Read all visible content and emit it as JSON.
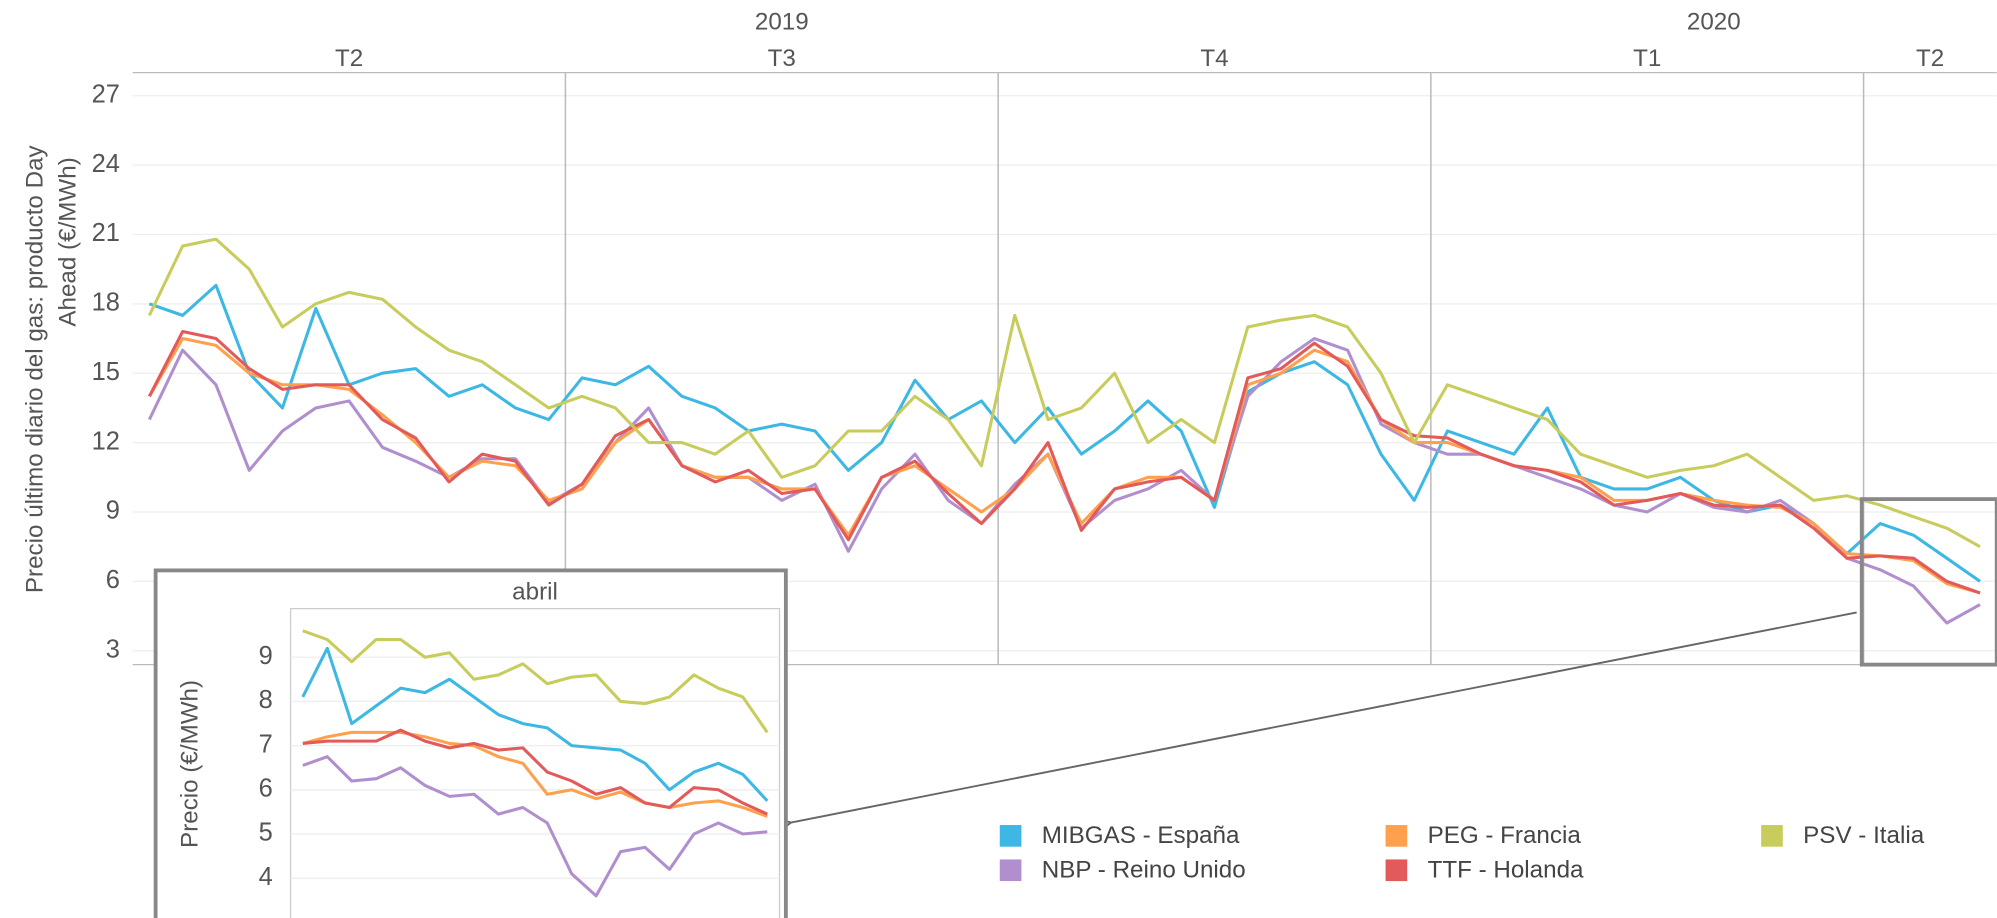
{
  "chart_data": [
    {
      "type": "line",
      "y_label": [
        "Precio último diario del gas: producto Day",
        "Ahead (€/MWh)"
      ],
      "categories": [
        "T2",
        "T2",
        "T2",
        "T2",
        "T2",
        "T2",
        "T2",
        "T2",
        "T2",
        "T2",
        "T2",
        "T2",
        "T2",
        "T3",
        "T3",
        "T3",
        "T3",
        "T3",
        "T3",
        "T3",
        "T3",
        "T3",
        "T3",
        "T3",
        "T3",
        "T3",
        "T4",
        "T4",
        "T4",
        "T4",
        "T4",
        "T4",
        "T4",
        "T4",
        "T4",
        "T4",
        "T4",
        "T4",
        "T4",
        "T1",
        "T1",
        "T1",
        "T1",
        "T1",
        "T1",
        "T1",
        "T1",
        "T1",
        "T1",
        "T1",
        "T1",
        "T1",
        "T2",
        "T2",
        "T2",
        "T2"
      ],
      "years": [
        "2019",
        "2019",
        "2019",
        "2019",
        "2019",
        "2019",
        "2019",
        "2019",
        "2019",
        "2019",
        "2019",
        "2019",
        "2019",
        "2019",
        "2019",
        "2019",
        "2019",
        "2019",
        "2019",
        "2019",
        "2019",
        "2019",
        "2019",
        "2019",
        "2019",
        "2019",
        "2019",
        "2019",
        "2019",
        "2019",
        "2019",
        "2019",
        "2019",
        "2019",
        "2019",
        "2019",
        "2019",
        "2019",
        "2019",
        "2020",
        "2020",
        "2020",
        "2020",
        "2020",
        "2020",
        "2020",
        "2020",
        "2020",
        "2020",
        "2020",
        "2020",
        "2020",
        "2020",
        "2020",
        "2020",
        "2020"
      ],
      "ylim": [
        2.4,
        28
      ],
      "yticks": [
        3,
        6,
        9,
        12,
        15,
        18,
        21,
        24,
        27
      ],
      "grid": true,
      "series": [
        {
          "name": "MIBGAS - España",
          "color": "#3db7e4",
          "values": [
            18,
            17.5,
            18.8,
            15,
            13.5,
            17.8,
            14.5,
            15,
            15.2,
            14,
            14.5,
            13.5,
            13,
            14.8,
            14.5,
            15.3,
            14,
            13.5,
            12.5,
            12.8,
            12.5,
            10.8,
            12,
            14.7,
            13,
            13.8,
            12,
            13.5,
            11.5,
            12.5,
            13.8,
            12.5,
            9.2,
            14.2,
            15,
            15.5,
            14.5,
            11.5,
            9.5,
            12.5,
            12,
            11.5,
            13.5,
            10.5,
            10,
            10,
            10.5,
            9.5,
            9,
            9.3,
            8.5,
            7.2,
            8.5,
            8,
            7,
            6
          ]
        },
        {
          "name": "NBP - Reino Unido",
          "color": "#b18fcf",
          "values": [
            13,
            16,
            14.5,
            10.8,
            12.5,
            13.5,
            13.8,
            11.8,
            11.2,
            10.5,
            11.3,
            11.3,
            9.4,
            10.2,
            12,
            13.5,
            11,
            10.5,
            10.5,
            9.5,
            10.2,
            7.3,
            10,
            11.5,
            9.5,
            8.5,
            10.2,
            11.5,
            8.3,
            9.5,
            10,
            10.8,
            9.5,
            14,
            15.5,
            16.5,
            16,
            12.8,
            12,
            11.5,
            11.5,
            11,
            10.5,
            10,
            9.3,
            9,
            9.8,
            9.2,
            9,
            9.5,
            8.5,
            7,
            6.5,
            5.8,
            4.2,
            5
          ]
        },
        {
          "name": "PEG - Francia",
          "color": "#ffa04d",
          "values": [
            14,
            16.5,
            16.2,
            15,
            14.5,
            14.5,
            14.3,
            13.2,
            12,
            10.5,
            11.2,
            11,
            9.5,
            10,
            12,
            13,
            11,
            10.5,
            10.5,
            10,
            10,
            8,
            10.5,
            11,
            10,
            9,
            10,
            11.5,
            8.5,
            10,
            10.5,
            10.5,
            9.5,
            14.5,
            15,
            16,
            15.5,
            13,
            12,
            12,
            11.5,
            11,
            10.8,
            10.5,
            9.5,
            9.5,
            9.8,
            9.5,
            9.3,
            9.2,
            8.5,
            7.2,
            7.1,
            6.9,
            5.9,
            5.5
          ]
        },
        {
          "name": "TTF - Holanda",
          "color": "#e35a5a",
          "values": [
            14,
            16.8,
            16.5,
            15.2,
            14.3,
            14.5,
            14.5,
            13,
            12.2,
            10.3,
            11.5,
            11.2,
            9.3,
            10.2,
            12.3,
            13,
            11,
            10.3,
            10.8,
            9.8,
            10,
            7.8,
            10.5,
            11.2,
            9.8,
            8.5,
            10,
            12,
            8.2,
            10,
            10.3,
            10.5,
            9.5,
            14.8,
            15.2,
            16.3,
            15.3,
            13,
            12.3,
            12.2,
            11.5,
            11,
            10.8,
            10.3,
            9.3,
            9.5,
            9.8,
            9.3,
            9.2,
            9.3,
            8.3,
            7,
            7.1,
            7,
            6,
            5.5
          ]
        },
        {
          "name": "PSV - Italia",
          "color": "#c8cc5c",
          "values": [
            17.5,
            20.5,
            20.8,
            19.5,
            17,
            18,
            18.5,
            18.2,
            17,
            16,
            15.5,
            14.5,
            13.5,
            14,
            13.5,
            12,
            12,
            11.5,
            12.5,
            10.5,
            11,
            12.5,
            12.5,
            14,
            13,
            11,
            17.5,
            13,
            13.5,
            15,
            12,
            13,
            12,
            17,
            17.3,
            17.5,
            17,
            15,
            12,
            14.5,
            14,
            13.5,
            13,
            11.5,
            11,
            10.5,
            10.8,
            11,
            11.5,
            10.5,
            9.5,
            9.7,
            9.3,
            8.8,
            8.3,
            7.5
          ]
        }
      ]
    },
    {
      "type": "line",
      "title": "abril",
      "y_label": "Precio (€/MWh)",
      "ylim": [
        3.1,
        10.1
      ],
      "yticks": [
        4,
        5,
        6,
        7,
        8,
        9
      ],
      "grid": true,
      "series": [
        {
          "color": "#3db7e4",
          "values": [
            8.1,
            9.2,
            7.5,
            7.9,
            8.3,
            8.2,
            8.5,
            8.1,
            7.7,
            7.5,
            7.4,
            7,
            6.95,
            6.9,
            6.6,
            6,
            6.4,
            6.6,
            6.35,
            5.75
          ]
        },
        {
          "color": "#b18fcf",
          "values": [
            6.55,
            6.75,
            6.2,
            6.25,
            6.5,
            6.1,
            5.85,
            5.9,
            5.45,
            5.6,
            5.25,
            4.1,
            3.6,
            4.6,
            4.7,
            4.2,
            5,
            5.25,
            5,
            5.05
          ]
        },
        {
          "color": "#ffa04d",
          "values": [
            7.05,
            7.2,
            7.3,
            7.3,
            7.3,
            7.2,
            7.05,
            7,
            6.75,
            6.6,
            5.9,
            6,
            5.8,
            5.95,
            5.7,
            5.6,
            5.7,
            5.75,
            5.6,
            5.4
          ]
        },
        {
          "color": "#e35a5a",
          "values": [
            7.05,
            7.1,
            7.1,
            7.1,
            7.35,
            7.1,
            6.95,
            7.05,
            6.9,
            6.95,
            6.4,
            6.2,
            5.9,
            6.05,
            5.7,
            5.6,
            6.05,
            6,
            5.7,
            5.45
          ]
        },
        {
          "color": "#c8cc5c",
          "values": [
            9.6,
            9.4,
            8.9,
            9.4,
            9.4,
            9,
            9.1,
            8.5,
            8.6,
            8.85,
            8.4,
            8.55,
            8.6,
            8,
            7.95,
            8.1,
            8.6,
            8.3,
            8.1,
            7.3
          ]
        }
      ]
    }
  ]
}
